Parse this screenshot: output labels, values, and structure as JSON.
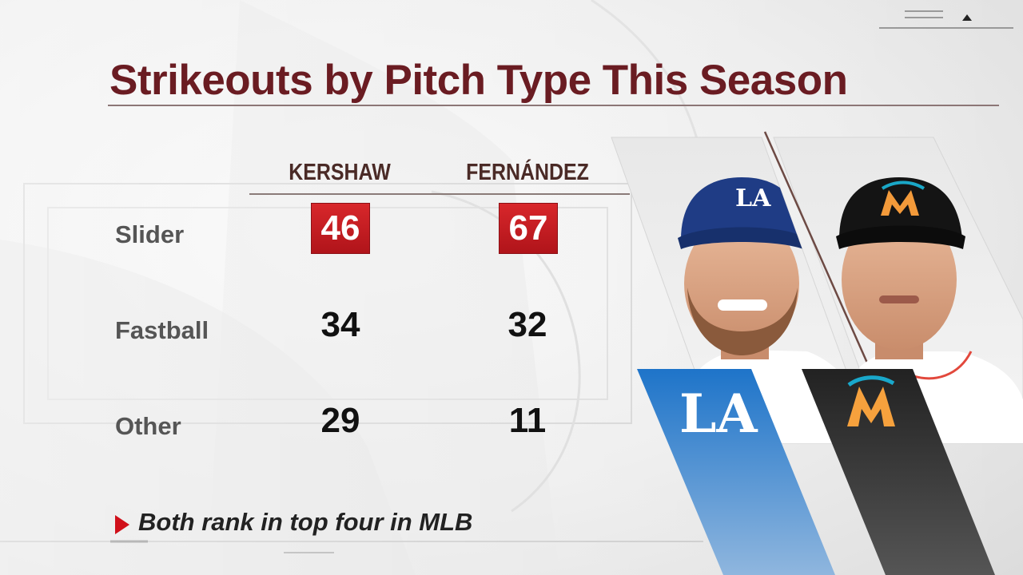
{
  "graphic": {
    "title": "Strikeouts by Pitch Type This Season",
    "columns": [
      "KERSHAW",
      "FERNÁNDEZ"
    ],
    "rows": [
      {
        "label": "Slider",
        "values": [
          "46",
          "67"
        ],
        "highlight": true
      },
      {
        "label": "Fastball",
        "values": [
          "34",
          "32"
        ],
        "highlight": false
      },
      {
        "label": "Other",
        "values": [
          "29",
          "11"
        ],
        "highlight": false
      }
    ],
    "note": "Both rank in top four in MLB"
  },
  "players": [
    {
      "team_logo_text": "LA",
      "team_color": "#1d6bbf",
      "cap_color": "#1e3b82",
      "icon": "dodgers-logo-icon"
    },
    {
      "team_logo_text": "M",
      "team_color": "#2a2a2a",
      "cap_color": "#121212",
      "icon": "marlins-logo-icon"
    }
  ],
  "colors": {
    "title": "#6a1c22",
    "highlight": "#c41e24",
    "accent_arrow": "#d0101a"
  }
}
